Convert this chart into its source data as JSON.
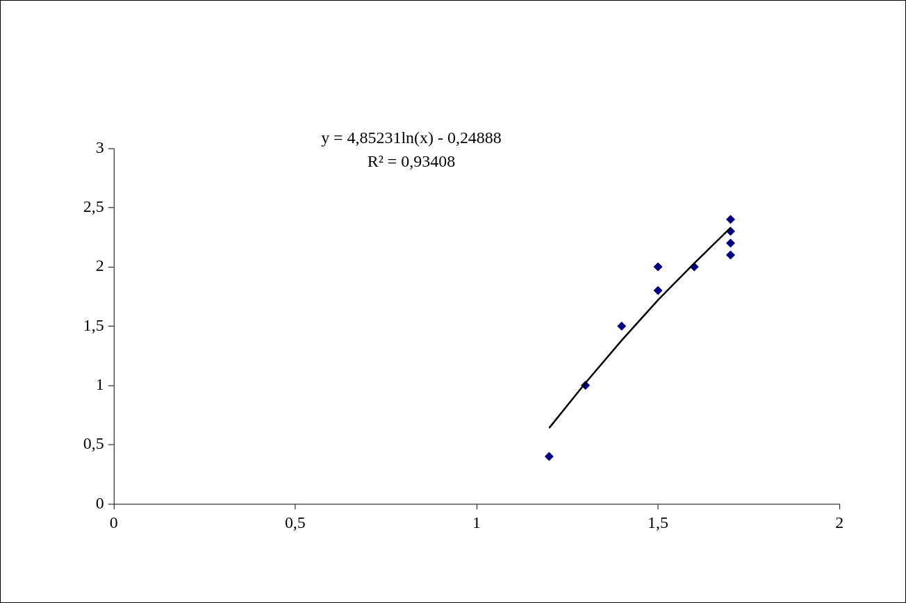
{
  "chart_data": {
    "type": "scatter",
    "annotations": [
      "y = 4,85231ln(x) - 0,24888",
      "R² = 0,93408"
    ],
    "series": [
      {
        "type": "scatter",
        "color": "#000080",
        "marker": "diamond",
        "x": [
          1.2,
          1.3,
          1.4,
          1.5,
          1.5,
          1.6,
          1.7,
          1.7,
          1.7,
          1.7
        ],
        "values": [
          0.4,
          1.0,
          1.5,
          2.0,
          1.8,
          2.0,
          2.4,
          2.3,
          2.2,
          2.1
        ]
      },
      {
        "type": "line",
        "color": "#000000",
        "marker": "none",
        "line_style": "solid",
        "x": [
          1.2,
          1.3,
          1.4,
          1.5,
          1.6,
          1.7
        ],
        "values": [
          0.64,
          1.02,
          1.38,
          1.72,
          2.03,
          2.33
        ]
      }
    ],
    "xlim": [
      0,
      2
    ],
    "ylim": [
      0,
      3
    ],
    "xticks": [
      0,
      {
        "value": 0.5,
        "label": "0,5"
      },
      1,
      {
        "value": 1.5,
        "label": "1,5"
      },
      2
    ],
    "yticks": [
      0,
      {
        "value": 0.5,
        "label": "0,5"
      },
      1,
      {
        "value": 1.5,
        "label": "1,5"
      },
      2,
      {
        "value": 2.5,
        "label": "2,5"
      },
      3
    ],
    "grid": false,
    "legend": false
  }
}
